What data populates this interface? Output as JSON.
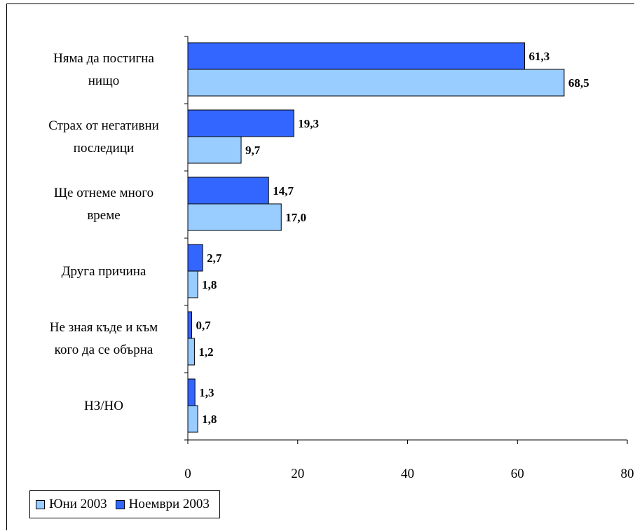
{
  "chart_data": {
    "type": "bar",
    "orientation": "horizontal",
    "categories": [
      [
        "Няма да постигна",
        "нищо"
      ],
      [
        "Страх от негативни",
        "последици"
      ],
      [
        "Ще отнеме много",
        "време"
      ],
      [
        "Друга причина"
      ],
      [
        "Не зная къде и към",
        "кого да се обърна"
      ],
      [
        "НЗ/НО"
      ]
    ],
    "series": [
      {
        "name": "Ноември 2003",
        "color": "#3366ff",
        "values": [
          61.3,
          19.3,
          14.7,
          2.7,
          0.7,
          1.3
        ],
        "labels": [
          "61,3",
          "19,3",
          "14,7",
          "2,7",
          "0,7",
          "1,3"
        ]
      },
      {
        "name": "Юни 2003",
        "color": "#99ccff",
        "values": [
          68.5,
          9.7,
          17.0,
          1.8,
          1.2,
          1.8
        ],
        "labels": [
          "68,5",
          "9,7",
          "17,0",
          "1,8",
          "1,2",
          "1,8"
        ]
      }
    ],
    "xlim": [
      0,
      80
    ],
    "xticks": [
      0,
      20,
      40,
      60,
      80
    ],
    "xtick_labels": [
      "0",
      "20",
      "40",
      "60",
      "80"
    ],
    "grid": false,
    "legend_position": "bottom-left",
    "title": "",
    "xlabel": "",
    "ylabel": ""
  },
  "legend": {
    "items": [
      {
        "label": "Юни 2003",
        "color": "#99ccff"
      },
      {
        "label": "Ноември 2003",
        "color": "#3366ff"
      }
    ]
  }
}
